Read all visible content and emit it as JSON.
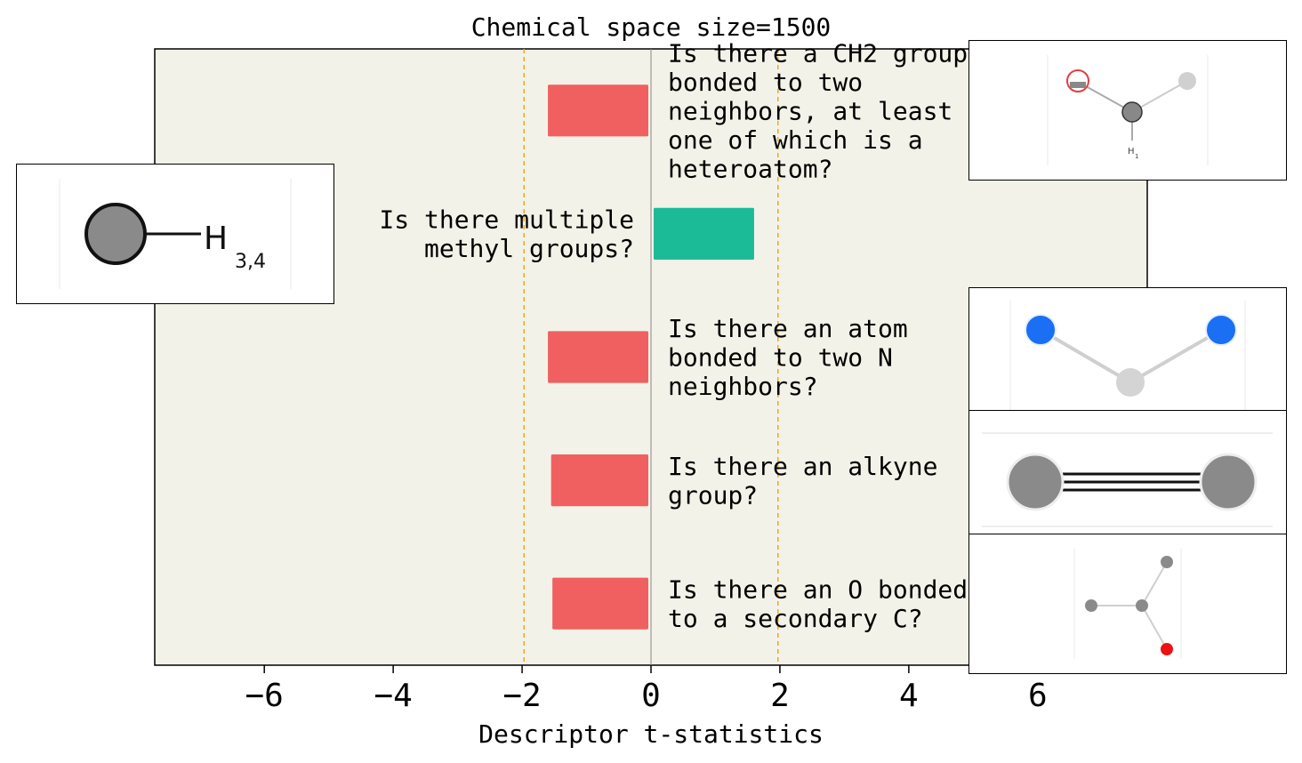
{
  "chart_data": {
    "type": "bar",
    "orientation": "horizontal",
    "title": "Chemical space size=1500",
    "xlabel": "Descriptor t-statistics",
    "ylabel": "",
    "xlim": [
      -7.7,
      7.7
    ],
    "x_ticks": [
      "−6",
      "−4",
      "−2",
      "0",
      "2",
      "4",
      "6"
    ],
    "x_tick_values": [
      -6,
      -4,
      -2,
      0,
      2,
      4,
      6
    ],
    "threshold_lines": [
      -1.97,
      1.97
    ],
    "grid": false,
    "background_color": "#f3f2e8",
    "categories": [
      "Is there a CH2 group bonded to two neighbors, at least one of which is a heteroatom?",
      "Is there multiple methyl groups?",
      "Is there an atom bonded to two N neighbors?",
      "Is there an alkyne group?",
      "Is there an O bonded to a secondary C?"
    ],
    "values": [
      -1.6,
      1.6,
      -1.6,
      -1.55,
      -1.53
    ],
    "label_lines": [
      [
        "Is there a CH2 group",
        "bonded to two",
        "neighbors, at least",
        "one of which is a",
        "heteroatom?"
      ],
      [
        "Is there multiple",
        "methyl groups?"
      ],
      [
        "Is there an atom",
        "bonded to two N",
        "neighbors?"
      ],
      [
        "Is there an alkyne",
        "group?"
      ],
      [
        "Is there an O bonded",
        "to a secondary C?"
      ]
    ],
    "colors": {
      "negative": "#f06060",
      "positive": "#1cbb98",
      "threshold": "#f5a623",
      "zero_line": "#888888"
    }
  },
  "insets": {
    "methyl_subscript": "3,4",
    "methyl_atom": "H",
    "ch2_subscript": "1",
    "ch2_atom": "H"
  }
}
